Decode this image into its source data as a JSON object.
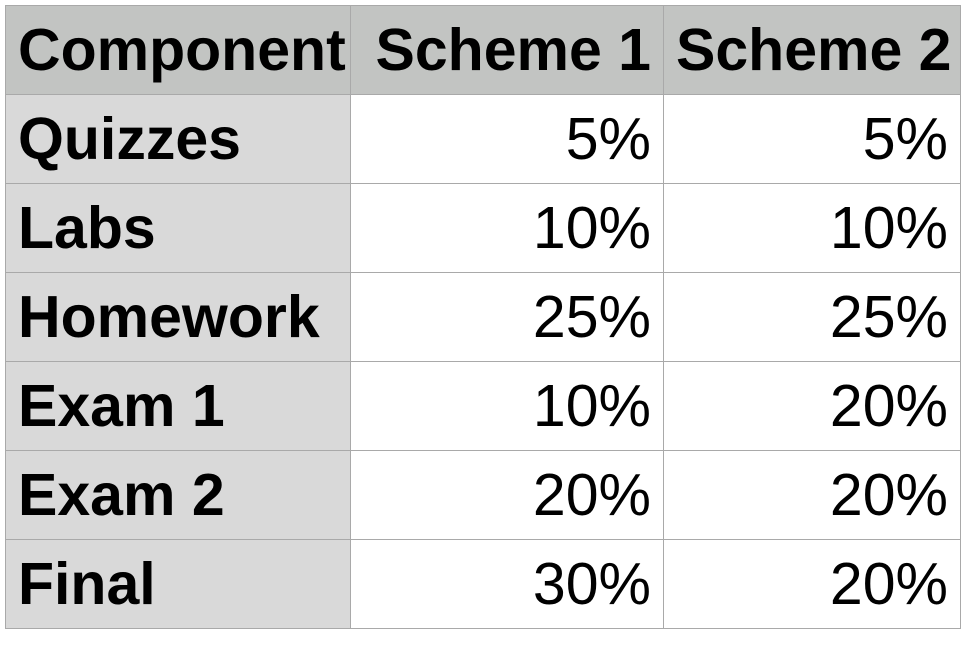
{
  "table": {
    "headers": [
      "Component",
      "Scheme 1",
      "Scheme 2"
    ],
    "rows": [
      {
        "component": "Quizzes",
        "scheme1": "5%",
        "scheme2": "5%"
      },
      {
        "component": "Labs",
        "scheme1": "10%",
        "scheme2": "10%"
      },
      {
        "component": "Homework",
        "scheme1": "25%",
        "scheme2": "25%"
      },
      {
        "component": "Exam 1",
        "scheme1": "10%",
        "scheme2": "20%"
      },
      {
        "component": "Exam 2",
        "scheme1": "20%",
        "scheme2": "20%"
      },
      {
        "component": "Final",
        "scheme1": "30%",
        "scheme2": "20%"
      }
    ]
  },
  "colors": {
    "header_bg": "#c2c4c2",
    "row_header_bg": "#d9d9d9",
    "cell_bg": "#ffffff",
    "border": "#a9a9a9",
    "text": "#000000"
  }
}
